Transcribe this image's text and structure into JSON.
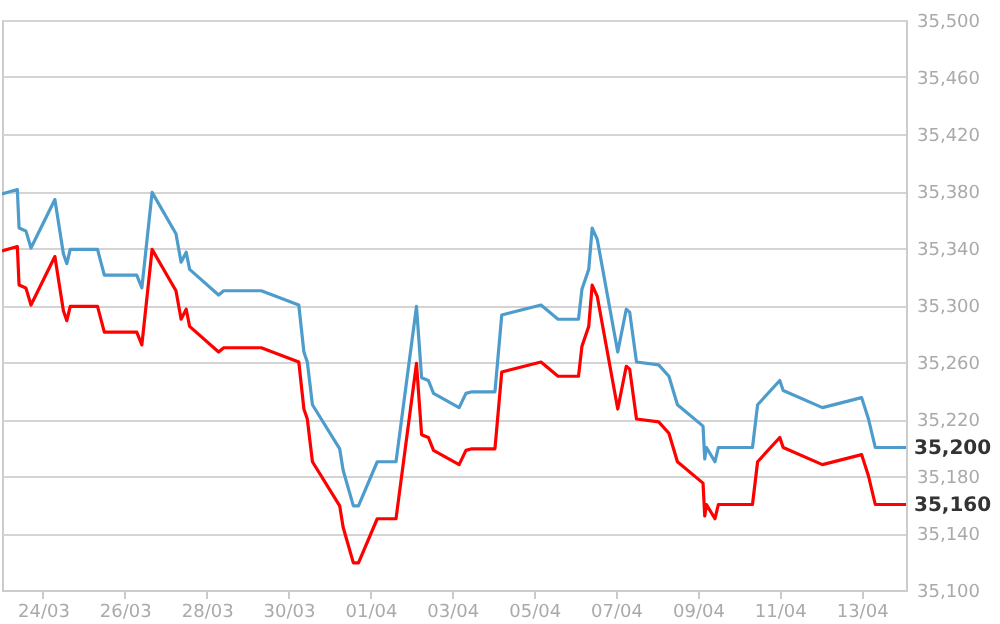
{
  "chart_data": {
    "type": "line",
    "x": [
      "--03-23T00:00",
      "--03-23T09:00",
      "--03-23T10:00",
      "--03-23T14:00",
      "--03-23T17:00",
      "--03-24T07:00",
      "--03-24T12:00",
      "--03-24T14:00",
      "--03-24T16:00",
      "--03-25T08:00",
      "--03-25T12:00",
      "--03-26T07:00",
      "--03-26T10:00",
      "--03-26T16:00",
      "--03-27T06:00",
      "--03-27T09:00",
      "--03-27T12:00",
      "--03-27T14:00",
      "--03-28T07:00",
      "--03-28T10:00",
      "--03-29T08:00",
      "--03-30T06:00",
      "--03-30T09:00",
      "--03-30T11:00",
      "--03-30T14:00",
      "--03-31T06:00",
      "--03-31T08:00",
      "--03-31T14:00",
      "--03-31T17:00",
      "--04-01T04:00",
      "--04-01T15:00",
      "--04-02T03:00",
      "--04-02T06:00",
      "--04-02T10:00",
      "--04-02T13:00",
      "--04-03T04:00",
      "--04-03T08:00",
      "--04-03T11:00",
      "--04-04T01:00",
      "--04-04T05:00",
      "--04-05T04:00",
      "--04-05T14:00",
      "--04-06T02:00",
      "--04-06T04:00",
      "--04-06T08:00",
      "--04-06T10:00",
      "--04-06T13:00",
      "--04-07T01:00",
      "--04-07T06:00",
      "--04-07T08:00",
      "--04-07T12:00",
      "--04-08T01:00",
      "--04-08T07:00",
      "--04-08T12:00",
      "--04-09T03:00",
      "--04-09T04:00",
      "--04-09T05:00",
      "--04-09T10:00",
      "--04-09T12:00",
      "--04-10T08:00",
      "--04-10T11:00",
      "--04-11T00:00",
      "--04-11T02:00",
      "--04-12T01:00",
      "--04-13T00:00",
      "--04-13T04:00",
      "--04-13T08:00",
      "--04-14T02:00"
    ],
    "series": [
      {
        "color": "#4d9ccc",
        "values": [
          35378,
          35381,
          35354,
          35352,
          35340,
          35374,
          35336,
          35329,
          35339,
          35339,
          35321,
          35321,
          35312,
          35379,
          35350,
          35330,
          35337,
          35325,
          35307,
          35310,
          35310,
          35300,
          35267,
          35260,
          35230,
          35199,
          35184,
          35159,
          35159,
          35190,
          35190,
          35299,
          35249,
          35247,
          35238,
          35228,
          35238,
          35239,
          35239,
          35293,
          35300,
          35290,
          35290,
          35311,
          35325,
          35354,
          35346,
          35267,
          35297,
          35295,
          35260,
          35258,
          35250,
          35230,
          35215,
          35192,
          35200,
          35190,
          35200,
          35200,
          35230,
          35247,
          35240,
          35228,
          35235,
          35220,
          35200,
          35200
        ]
      },
      {
        "color": "#ff0000",
        "values": [
          35338,
          35341,
          35314,
          35312,
          35300,
          35334,
          35296,
          35289,
          35299,
          35299,
          35281,
          35281,
          35272,
          35339,
          35310,
          35290,
          35297,
          35285,
          35267,
          35270,
          35270,
          35260,
          35227,
          35220,
          35190,
          35159,
          35144,
          35119,
          35119,
          35150,
          35150,
          35259,
          35209,
          35207,
          35198,
          35188,
          35198,
          35199,
          35199,
          35253,
          35260,
          35250,
          35250,
          35271,
          35285,
          35314,
          35306,
          35227,
          35257,
          35255,
          35220,
          35218,
          35210,
          35190,
          35175,
          35152,
          35160,
          35150,
          35160,
          35160,
          35190,
          35207,
          35200,
          35188,
          35195,
          35180,
          35160,
          35160
        ]
      }
    ],
    "xlim": [
      "--03-23T00:00",
      "--04-14T02:00"
    ],
    "xticks": [
      {
        "value": "--03-24",
        "label": "24/03"
      },
      {
        "value": "--03-26",
        "label": "26/03"
      },
      {
        "value": "--03-28",
        "label": "28/03"
      },
      {
        "value": "--03-30",
        "label": "30/03"
      },
      {
        "value": "--04-01",
        "label": "01/04"
      },
      {
        "value": "--04-03",
        "label": "03/04"
      },
      {
        "value": "--04-05",
        "label": "05/04"
      },
      {
        "value": "--04-07",
        "label": "07/04"
      },
      {
        "value": "--04-09",
        "label": "09/04"
      },
      {
        "value": "--04-11",
        "label": "11/04"
      },
      {
        "value": "--04-13",
        "label": "13/04"
      }
    ],
    "ylim": [
      35100,
      35500
    ],
    "yticks": [
      {
        "value": 35100,
        "label": "35,100"
      },
      {
        "value": 35140,
        "label": "35,140"
      },
      {
        "value": 35180,
        "label": "35,180"
      },
      {
        "value": 35220,
        "label": "35,220"
      },
      {
        "value": 35260,
        "label": "35,260"
      },
      {
        "value": 35300,
        "label": "35,300"
      },
      {
        "value": 35340,
        "label": "35,340"
      },
      {
        "value": 35380,
        "label": "35,380"
      },
      {
        "value": 35420,
        "label": "35,420"
      },
      {
        "value": 35460,
        "label": "35,460"
      },
      {
        "value": 35500,
        "label": "35,500"
      }
    ],
    "grid": "y",
    "annotations": [
      {
        "text": "35,200",
        "x": "--04-14T02:00",
        "y": 35200
      },
      {
        "text": "35,160",
        "x": "--04-14T02:00",
        "y": 35160
      }
    ]
  }
}
